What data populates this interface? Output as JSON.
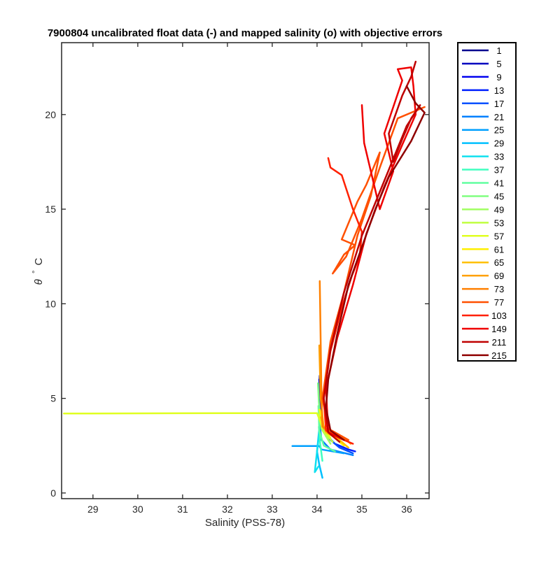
{
  "chart_data": {
    "type": "line",
    "title": "7900804 uncalibrated float data (-) and mapped salinity (o) with objective errors",
    "xlabel": "Salinity (PSS-78)",
    "ylabel_symbol": "θ",
    "ylabel_degree": "°",
    "ylabel_unit": "C",
    "xlim": [
      28.3,
      36.5
    ],
    "ylim": [
      -0.3,
      23.8
    ],
    "xticks": [
      29,
      30,
      31,
      32,
      33,
      34,
      35,
      36
    ],
    "yticks": [
      0,
      5,
      10,
      15,
      20
    ],
    "grid": false,
    "legend_position": "outside-right",
    "series": [
      {
        "name": "1",
        "color": "#00008f",
        "points": [
          [
            34.06,
            6.2
          ],
          [
            34.05,
            5.6
          ],
          [
            34.06,
            5.0
          ],
          [
            34.08,
            4.5
          ]
        ]
      },
      {
        "name": "5",
        "color": "#0000bf",
        "points": [
          [
            34.05,
            6.0
          ],
          [
            34.06,
            5.3
          ],
          [
            34.07,
            4.8
          ],
          [
            34.09,
            4.3
          ]
        ]
      },
      {
        "name": "9",
        "color": "#0000ef",
        "points": [
          [
            34.06,
            5.8
          ],
          [
            34.05,
            5.2
          ],
          [
            34.07,
            4.6
          ],
          [
            34.1,
            4.1
          ]
        ]
      },
      {
        "name": "13",
        "color": "#0020ff",
        "points": [
          [
            34.08,
            4.0
          ],
          [
            34.15,
            3.2
          ],
          [
            34.4,
            2.6
          ],
          [
            34.7,
            2.3
          ],
          [
            34.85,
            2.2
          ]
        ]
      },
      {
        "name": "17",
        "color": "#0050ff",
        "points": [
          [
            34.08,
            3.8
          ],
          [
            34.2,
            3.0
          ],
          [
            34.5,
            2.4
          ],
          [
            34.8,
            2.1
          ]
        ]
      },
      {
        "name": "21",
        "color": "#0080ff",
        "points": [
          [
            34.06,
            3.6
          ],
          [
            34.1,
            2.8
          ],
          [
            34.3,
            2.3
          ],
          [
            34.8,
            2.0
          ]
        ]
      },
      {
        "name": "25",
        "color": "#00a0ff",
        "points": [
          [
            33.45,
            2.48
          ],
          [
            34.05,
            2.48
          ],
          [
            34.1,
            2.3
          ],
          [
            34.6,
            2.1
          ]
        ]
      },
      {
        "name": "29",
        "color": "#00c0ff",
        "points": [
          [
            34.05,
            3.4
          ],
          [
            34.0,
            2.2
          ],
          [
            34.05,
            1.5
          ],
          [
            34.12,
            0.8
          ]
        ]
      },
      {
        "name": "33",
        "color": "#10e0ef",
        "points": [
          [
            34.05,
            3.2
          ],
          [
            33.98,
            1.8
          ],
          [
            33.95,
            1.1
          ],
          [
            34.03,
            1.4
          ]
        ]
      },
      {
        "name": "37",
        "color": "#40ffbf",
        "points": [
          [
            34.04,
            3.5
          ],
          [
            34.07,
            2.6
          ],
          [
            34.12,
            1.7
          ]
        ]
      },
      {
        "name": "41",
        "color": "#60ffa0",
        "points": [
          [
            34.03,
            4.6
          ],
          [
            34.05,
            3.3
          ],
          [
            34.15,
            2.5
          ],
          [
            34.4,
            2.2
          ]
        ]
      },
      {
        "name": "45",
        "color": "#80ff80",
        "points": [
          [
            34.02,
            5.8
          ],
          [
            34.04,
            4.8
          ],
          [
            34.08,
            3.7
          ],
          [
            34.25,
            2.8
          ]
        ]
      },
      {
        "name": "49",
        "color": "#a0ff60",
        "points": [
          [
            34.04,
            4.4
          ],
          [
            34.1,
            3.4
          ],
          [
            34.3,
            2.6
          ]
        ]
      },
      {
        "name": "53",
        "color": "#c0ff40",
        "points": [
          [
            34.05,
            4.2
          ],
          [
            34.12,
            3.3
          ],
          [
            34.35,
            2.7
          ]
        ]
      },
      {
        "name": "57",
        "color": "#e0ff20",
        "points": [
          [
            28.35,
            4.2
          ],
          [
            32.0,
            4.22
          ],
          [
            34.0,
            4.22
          ],
          [
            34.1,
            3.6
          ],
          [
            34.3,
            2.9
          ]
        ]
      },
      {
        "name": "61",
        "color": "#ffef00",
        "points": [
          [
            34.06,
            4.4
          ],
          [
            34.15,
            3.5
          ],
          [
            34.4,
            2.9
          ],
          [
            34.6,
            2.5
          ]
        ]
      },
      {
        "name": "65",
        "color": "#ffc000",
        "points": [
          [
            34.08,
            4.0
          ],
          [
            34.2,
            3.2
          ],
          [
            34.5,
            2.8
          ],
          [
            34.7,
            2.4
          ]
        ]
      },
      {
        "name": "69",
        "color": "#ffa000",
        "points": [
          [
            34.05,
            7.8
          ],
          [
            34.08,
            5.0
          ],
          [
            34.15,
            3.4
          ],
          [
            34.6,
            2.9
          ],
          [
            34.75,
            2.6
          ]
        ]
      },
      {
        "name": "73",
        "color": "#ff8000",
        "points": [
          [
            34.06,
            11.2
          ],
          [
            34.08,
            8.0
          ],
          [
            34.1,
            5.0
          ],
          [
            34.12,
            3.5
          ],
          [
            34.6,
            2.9
          ]
        ]
      },
      {
        "name": "77",
        "color": "#ff5000",
        "points": [
          [
            36.4,
            20.4
          ],
          [
            35.8,
            19.8
          ],
          [
            35.4,
            17.2
          ],
          [
            35.0,
            14.5
          ],
          [
            34.65,
            12.5
          ],
          [
            34.35,
            11.6
          ],
          [
            34.6,
            12.6
          ],
          [
            34.85,
            13.1
          ],
          [
            34.55,
            13.4
          ],
          [
            34.9,
            15.4
          ],
          [
            35.1,
            16.3
          ],
          [
            35.4,
            18.0
          ],
          [
            35.2,
            15.7
          ],
          [
            34.9,
            13.6
          ],
          [
            34.6,
            10.6
          ],
          [
            34.3,
            8.0
          ],
          [
            34.12,
            5.0
          ],
          [
            34.25,
            3.4
          ],
          [
            34.7,
            2.8
          ]
        ]
      },
      {
        "name": "103",
        "color": "#ff2000",
        "points": [
          [
            34.25,
            17.7
          ],
          [
            34.3,
            17.2
          ],
          [
            34.55,
            16.8
          ],
          [
            34.8,
            15.0
          ],
          [
            35.0,
            13.8
          ],
          [
            34.95,
            12.5
          ],
          [
            34.78,
            11.5
          ],
          [
            34.55,
            9.8
          ],
          [
            34.3,
            7.5
          ],
          [
            34.15,
            5.0
          ],
          [
            34.2,
            3.3
          ],
          [
            34.5,
            2.9
          ],
          [
            34.8,
            2.6
          ]
        ]
      },
      {
        "name": "149",
        "color": "#ef0000",
        "points": [
          [
            35.0,
            20.5
          ],
          [
            35.05,
            18.5
          ],
          [
            35.2,
            17.0
          ],
          [
            35.4,
            15.0
          ],
          [
            35.7,
            17.0
          ],
          [
            35.5,
            19.0
          ],
          [
            35.9,
            21.8
          ],
          [
            35.8,
            22.4
          ],
          [
            36.1,
            22.5
          ],
          [
            36.15,
            21.5
          ],
          [
            36.2,
            20.0
          ],
          [
            35.9,
            18.4
          ],
          [
            35.5,
            16.2
          ],
          [
            35.1,
            13.7
          ],
          [
            34.8,
            11.0
          ],
          [
            34.45,
            8.2
          ],
          [
            34.2,
            5.5
          ],
          [
            34.25,
            3.2
          ],
          [
            34.6,
            2.8
          ]
        ]
      },
      {
        "name": "211",
        "color": "#bf0000",
        "points": [
          [
            36.2,
            22.8
          ],
          [
            36.1,
            22.0
          ],
          [
            35.9,
            21.0
          ],
          [
            35.6,
            19.0
          ],
          [
            35.7,
            17.5
          ],
          [
            35.9,
            18.7
          ],
          [
            36.1,
            19.8
          ],
          [
            36.3,
            20.5
          ],
          [
            36.0,
            19.4
          ],
          [
            35.5,
            16.5
          ],
          [
            35.0,
            13.6
          ],
          [
            34.6,
            10.6
          ],
          [
            34.3,
            7.6
          ],
          [
            34.15,
            5.0
          ],
          [
            34.25,
            3.2
          ],
          [
            34.5,
            2.7
          ]
        ]
      },
      {
        "name": "215",
        "color": "#8f0000",
        "points": [
          [
            36.0,
            21.5
          ],
          [
            36.2,
            20.6
          ],
          [
            36.4,
            20.1
          ],
          [
            36.1,
            18.6
          ],
          [
            35.6,
            16.7
          ],
          [
            35.3,
            15.0
          ],
          [
            35.0,
            13.0
          ],
          [
            34.7,
            11.0
          ],
          [
            34.45,
            8.4
          ],
          [
            34.25,
            6.0
          ],
          [
            34.2,
            4.5
          ],
          [
            34.3,
            3.3
          ],
          [
            34.6,
            2.8
          ]
        ]
      }
    ]
  }
}
